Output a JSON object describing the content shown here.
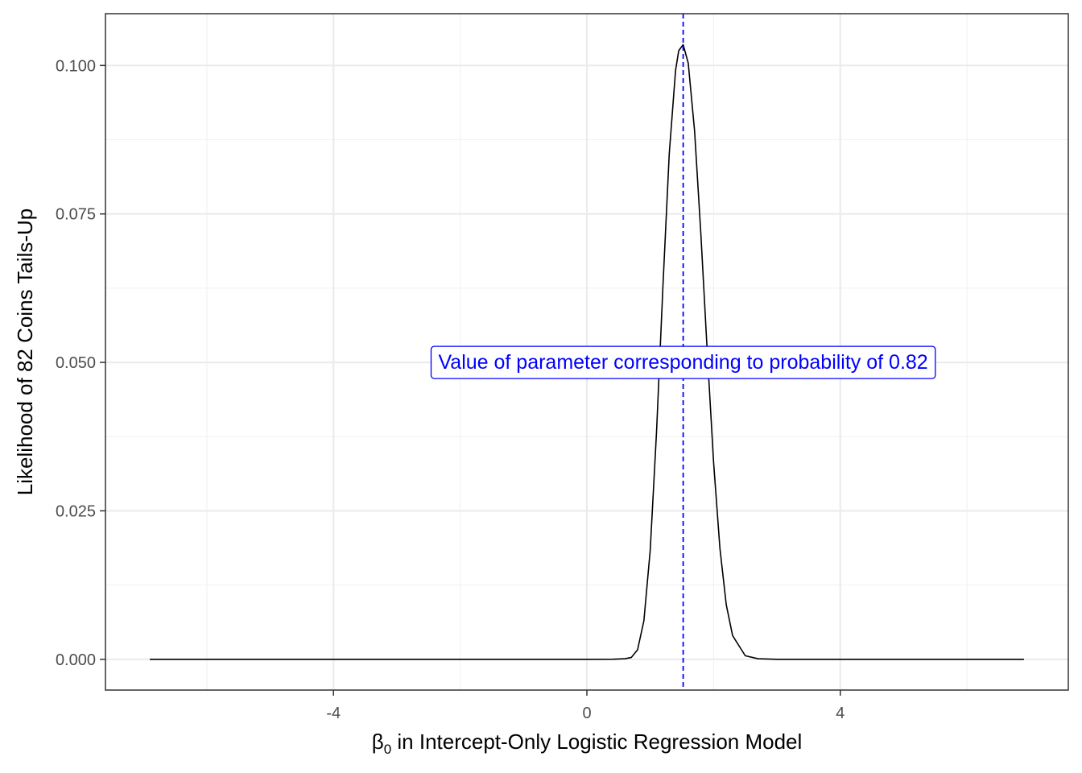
{
  "chart_data": {
    "type": "line",
    "xlabel": {
      "symbol": "β",
      "subscript": "0",
      "text": " in Intercept-Only Logistic Regression Model"
    },
    "ylabel": "Likelihood of 82 Coins Tails-Up",
    "xlim": [
      -7.6,
      7.6
    ],
    "ylim": [
      -0.00518,
      0.10872
    ],
    "x_ticks": [
      {
        "value": -4,
        "label": "-4"
      },
      {
        "value": 0,
        "label": "0"
      },
      {
        "value": 4,
        "label": "4"
      }
    ],
    "y_ticks": [
      {
        "value": 0.0,
        "label": "0.000"
      },
      {
        "value": 0.025,
        "label": "0.025"
      },
      {
        "value": 0.05,
        "label": "0.050"
      },
      {
        "value": 0.075,
        "label": "0.075"
      },
      {
        "value": 0.1,
        "label": "0.100"
      }
    ],
    "grid": true,
    "series": [
      {
        "color": "#000000",
        "x": [
          -6.9,
          -3.0,
          0.0,
          0.4,
          0.6,
          0.7,
          0.8,
          0.9,
          1.0,
          1.1,
          1.2,
          1.3,
          1.4,
          1.45,
          1.52,
          1.6,
          1.7,
          1.8,
          1.9,
          2.0,
          2.1,
          2.2,
          2.3,
          2.5,
          2.7,
          3.0,
          4.0,
          6.9
        ],
        "y": [
          0.0,
          0.0,
          0.0,
          1e-05,
          0.0001,
          0.0003,
          0.0016,
          0.0065,
          0.0184,
          0.0384,
          0.0627,
          0.0851,
          0.0992,
          0.1025,
          0.1035,
          0.1004,
          0.089,
          0.0715,
          0.0518,
          0.0332,
          0.0187,
          0.0092,
          0.004,
          0.0006,
          0.0001,
          0.0,
          0.0,
          0.0
        ]
      }
    ],
    "vline": {
      "x": 1.52,
      "color": "#0000ff",
      "style": "dashed"
    },
    "annotation": {
      "text": "Value of parameter corresponding to probability of 0.82",
      "x": 1.52,
      "y": 0.05,
      "color": "#0000ff"
    }
  }
}
